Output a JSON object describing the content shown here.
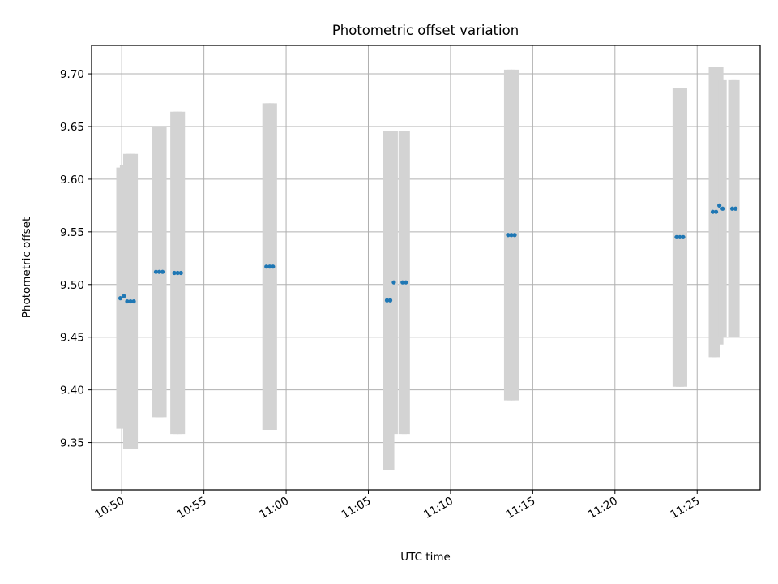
{
  "chart_data": {
    "type": "scatter",
    "title": "Photometric offset variation",
    "xlabel": "UTC time",
    "ylabel": "Photometric offset",
    "x_type": "time",
    "xlim": [
      "10:48:10",
      "11:28:50"
    ],
    "ylim": [
      9.305,
      9.727
    ],
    "x_ticks": [
      "10:50",
      "10:55",
      "11:00",
      "11:05",
      "11:10",
      "11:15",
      "11:20",
      "11:25"
    ],
    "y_ticks": [
      "9.35",
      "9.40",
      "9.45",
      "9.50",
      "9.55",
      "9.60",
      "9.65",
      "9.70"
    ],
    "grid": true,
    "series": [
      {
        "marker_color": "#1f77b4",
        "errorbar_color": "#d3d3d3",
        "points": [
          {
            "x": "10:49:55",
            "y": 9.487,
            "err": 0.124
          },
          {
            "x": "10:50:08",
            "y": 9.489,
            "err": 0.124
          },
          {
            "x": "10:50:20",
            "y": 9.484,
            "err": 0.14
          },
          {
            "x": "10:50:32",
            "y": 9.484,
            "err": 0.14
          },
          {
            "x": "10:50:44",
            "y": 9.484,
            "err": 0.14
          },
          {
            "x": "10:52:05",
            "y": 9.512,
            "err": 0.138
          },
          {
            "x": "10:52:17",
            "y": 9.512,
            "err": 0.138
          },
          {
            "x": "10:52:29",
            "y": 9.512,
            "err": 0.138
          },
          {
            "x": "10:53:12",
            "y": 9.511,
            "err": 0.153
          },
          {
            "x": "10:53:24",
            "y": 9.511,
            "err": 0.153
          },
          {
            "x": "10:53:36",
            "y": 9.511,
            "err": 0.153
          },
          {
            "x": "10:58:48",
            "y": 9.517,
            "err": 0.155
          },
          {
            "x": "10:59:00",
            "y": 9.517,
            "err": 0.155
          },
          {
            "x": "10:59:12",
            "y": 9.517,
            "err": 0.155
          },
          {
            "x": "11:06:08",
            "y": 9.485,
            "err": 0.161
          },
          {
            "x": "11:06:20",
            "y": 9.485,
            "err": 0.161
          },
          {
            "x": "11:06:33",
            "y": 9.502,
            "err": 0.144
          },
          {
            "x": "11:07:05",
            "y": 9.502,
            "err": 0.144
          },
          {
            "x": "11:07:17",
            "y": 9.502,
            "err": 0.144
          },
          {
            "x": "11:13:30",
            "y": 9.547,
            "err": 0.157
          },
          {
            "x": "11:13:42",
            "y": 9.547,
            "err": 0.157
          },
          {
            "x": "11:13:54",
            "y": 9.547,
            "err": 0.157
          },
          {
            "x": "11:23:45",
            "y": 9.545,
            "err": 0.142
          },
          {
            "x": "11:23:57",
            "y": 9.545,
            "err": 0.142
          },
          {
            "x": "11:24:09",
            "y": 9.545,
            "err": 0.142
          },
          {
            "x": "11:25:57",
            "y": 9.569,
            "err": 0.138
          },
          {
            "x": "11:26:09",
            "y": 9.569,
            "err": 0.138
          },
          {
            "x": "11:26:21",
            "y": 9.575,
            "err": 0.132
          },
          {
            "x": "11:26:33",
            "y": 9.572,
            "err": 0.122
          },
          {
            "x": "11:27:08",
            "y": 9.572,
            "err": 0.122
          },
          {
            "x": "11:27:20",
            "y": 9.572,
            "err": 0.122
          }
        ]
      }
    ]
  }
}
